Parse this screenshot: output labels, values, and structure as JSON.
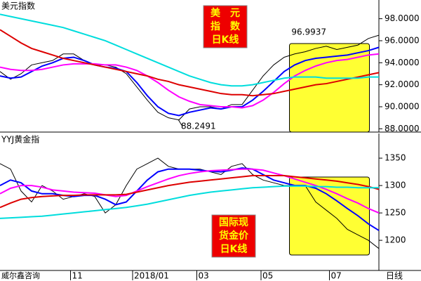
{
  "chart_data": [
    {
      "type": "line",
      "title": "美元指数",
      "x": [
        0,
        1,
        2,
        3,
        4,
        5,
        6,
        7,
        8,
        9,
        10,
        11,
        12,
        13,
        14,
        15,
        16,
        17,
        18,
        19,
        20,
        21,
        22,
        23,
        24,
        25,
        26,
        27,
        28,
        29,
        30,
        31,
        32,
        33,
        34,
        35,
        36
      ],
      "xlim": [
        0,
        36
      ],
      "ylim": [
        87.7,
        99.7
      ],
      "yticks": [
        {
          "value": 88,
          "label": "88.0000"
        },
        {
          "value": 90,
          "label": "90.0000"
        },
        {
          "value": 92,
          "label": "92.0000"
        },
        {
          "value": 94,
          "label": "94.0000"
        },
        {
          "value": 96,
          "label": "96.0000"
        },
        {
          "value": 98,
          "label": "98.0000"
        }
      ],
      "highlight": [
        27.5,
        35.1
      ],
      "highlight_color": "#ffff33",
      "box_text": [
        "美　元",
        "指　数",
        "日K线"
      ],
      "annotations": [
        "96.9937",
        "88.2491"
      ],
      "series": [
        {
          "color": "#000000",
          "values": [
            93.2,
            92.5,
            93,
            93.8,
            94,
            94.2,
            94.8,
            94.8,
            94.2,
            93.8,
            93.8,
            93.6,
            93,
            91.8,
            90.6,
            89.5,
            89,
            88.8,
            89.8,
            90,
            90,
            89.8,
            90.2,
            90.2,
            91.5,
            92.8,
            93.8,
            94.5,
            94.8,
            95,
            95.3,
            95.5,
            95.2,
            95.4,
            95.6,
            96.2,
            96.5
          ]
        },
        {
          "color": "#0000ff",
          "values": [
            92.8,
            92.6,
            92.7,
            93.2,
            93.7,
            94,
            94.4,
            94.5,
            94.2,
            93.8,
            93.6,
            93.5,
            93.2,
            92.2,
            91,
            90,
            89.4,
            89.2,
            89.5,
            89.7,
            89.9,
            89.8,
            90,
            90,
            90.6,
            91.4,
            92.3,
            93.2,
            93.8,
            94.2,
            94.4,
            94.5,
            94.6,
            94.7,
            94.9,
            95.1,
            95.4
          ]
        },
        {
          "color": "#ff00ff",
          "values": [
            93.6,
            93.4,
            93.3,
            93.3,
            93.4,
            93.6,
            93.8,
            93.9,
            93.9,
            93.9,
            93.8,
            93.8,
            93.6,
            93.3,
            92.8,
            92.2,
            91.5,
            90.9,
            90.5,
            90.2,
            90.1,
            90,
            90,
            89.9,
            90.1,
            90.6,
            91.3,
            92.1,
            92.8,
            93.3,
            93.7,
            94,
            94.2,
            94.3,
            94.5,
            94.7,
            94.8
          ]
        },
        {
          "color": "#dd0000",
          "values": [
            97,
            96.4,
            95.8,
            95.3,
            95,
            94.7,
            94.4,
            94.2,
            94,
            93.8,
            93.6,
            93.4,
            93.2,
            93,
            92.8,
            92.5,
            92.3,
            92,
            91.8,
            91.6,
            91.4,
            91.2,
            91.1,
            91.1,
            91,
            91.1,
            91.2,
            91.4,
            91.6,
            91.8,
            92,
            92.1,
            92.3,
            92.5,
            92.7,
            92.9,
            93.1
          ]
        },
        {
          "color": "#00dddd",
          "values": [
            98.4,
            98.2,
            98,
            97.8,
            97.6,
            97.4,
            97.2,
            96.9,
            96.6,
            96.3,
            96,
            95.6,
            95.2,
            94.8,
            94.4,
            94,
            93.6,
            93.2,
            92.8,
            92.5,
            92.2,
            92,
            91.9,
            91.9,
            92,
            92.2,
            92.4,
            92.6,
            92.7,
            92.7,
            92.7,
            92.6,
            92.6,
            92.6,
            92.6,
            92.7,
            92.7
          ]
        }
      ]
    },
    {
      "type": "line",
      "title": "YYJ黄金指",
      "x": [
        0,
        1,
        2,
        3,
        4,
        5,
        6,
        7,
        8,
        9,
        10,
        11,
        12,
        13,
        14,
        15,
        16,
        17,
        18,
        19,
        20,
        21,
        22,
        23,
        24,
        25,
        26,
        27,
        28,
        29,
        30,
        31,
        32,
        33,
        34,
        35,
        36
      ],
      "xlim": [
        0,
        36
      ],
      "ylim": [
        1145,
        1395
      ],
      "yticks": [
        1200,
        1250,
        1300,
        1350
      ],
      "xticks": [
        {
          "value": 6.7,
          "label": "11"
        },
        {
          "value": 12.6,
          "label": "2018/01"
        },
        {
          "value": 18.7,
          "label": "03"
        },
        {
          "value": 24.8,
          "label": "05"
        },
        {
          "value": 31.3,
          "label": "07"
        }
      ],
      "xlabel": "日线",
      "source": "威尔鑫咨询",
      "highlight": [
        27.5,
        35.1
      ],
      "highlight_color": "#ffff33",
      "box_text": [
        "国际现",
        "货金价",
        "日K线"
      ],
      "series": [
        {
          "color": "#000000",
          "values": [
            1340,
            1330,
            1290,
            1270,
            1300,
            1290,
            1275,
            1280,
            1285,
            1280,
            1250,
            1265,
            1300,
            1330,
            1340,
            1350,
            1335,
            1330,
            1330,
            1330,
            1325,
            1320,
            1335,
            1340,
            1320,
            1310,
            1305,
            1300,
            1300,
            1300,
            1270,
            1255,
            1240,
            1220,
            1210,
            1200,
            1185
          ]
        },
        {
          "color": "#0000ff",
          "values": [
            1300,
            1310,
            1305,
            1290,
            1285,
            1285,
            1282,
            1280,
            1282,
            1282,
            1275,
            1265,
            1270,
            1290,
            1310,
            1325,
            1330,
            1330,
            1330,
            1328,
            1326,
            1325,
            1328,
            1332,
            1330,
            1320,
            1310,
            1305,
            1300,
            1300,
            1295,
            1285,
            1272,
            1258,
            1245,
            1230,
            1218
          ]
        },
        {
          "color": "#ff00ff",
          "values": [
            1285,
            1295,
            1300,
            1300,
            1297,
            1292,
            1290,
            1288,
            1287,
            1286,
            1283,
            1280,
            1282,
            1290,
            1298,
            1305,
            1312,
            1318,
            1322,
            1325,
            1327,
            1328,
            1329,
            1330,
            1330,
            1328,
            1323,
            1318,
            1312,
            1306,
            1300,
            1293,
            1285,
            1276,
            1268,
            1258,
            1250
          ]
        },
        {
          "color": "#dd0000",
          "values": [
            1260,
            1268,
            1275,
            1278,
            1280,
            1281,
            1282,
            1282,
            1283,
            1283,
            1283,
            1283,
            1284,
            1288,
            1292,
            1296,
            1300,
            1303,
            1306,
            1308,
            1310,
            1312,
            1314,
            1316,
            1318,
            1318,
            1318,
            1318,
            1316,
            1314,
            1312,
            1310,
            1308,
            1305,
            1302,
            1298,
            1293
          ]
        },
        {
          "color": "#00dddd",
          "values": [
            1240,
            1241,
            1242,
            1243,
            1244,
            1246,
            1248,
            1250,
            1252,
            1254,
            1256,
            1258,
            1260,
            1263,
            1266,
            1270,
            1274,
            1278,
            1282,
            1285,
            1288,
            1290,
            1292,
            1294,
            1296,
            1297,
            1298,
            1299,
            1299,
            1299,
            1298,
            1298,
            1297,
            1297,
            1296,
            1296,
            1296
          ]
        }
      ]
    }
  ]
}
